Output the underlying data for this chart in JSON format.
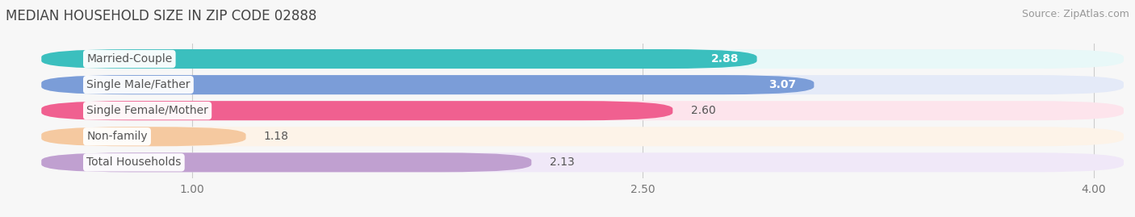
{
  "title": "MEDIAN HOUSEHOLD SIZE IN ZIP CODE 02888",
  "source": "Source: ZipAtlas.com",
  "categories": [
    "Married-Couple",
    "Single Male/Father",
    "Single Female/Mother",
    "Non-family",
    "Total Households"
  ],
  "values": [
    2.88,
    3.07,
    2.6,
    1.18,
    2.13
  ],
  "bar_colors": [
    "#3bbfbe",
    "#7b9dd8",
    "#f06090",
    "#f5c9a0",
    "#c0a0d0"
  ],
  "bar_bg_colors": [
    "#e8f8f8",
    "#e4eaf8",
    "#fde4ec",
    "#fdf3e8",
    "#f0e8f8"
  ],
  "value_inside": [
    true,
    true,
    false,
    false,
    false
  ],
  "xlim_start": 0.5,
  "xlim_end": 4.1,
  "xticks": [
    1.0,
    2.5,
    4.0
  ],
  "title_fontsize": 12,
  "source_fontsize": 9,
  "label_fontsize": 10,
  "value_fontsize": 10,
  "tick_fontsize": 10,
  "background_color": "#f7f7f7",
  "label_bg_color": "#ffffff",
  "label_text_color": "#555555"
}
